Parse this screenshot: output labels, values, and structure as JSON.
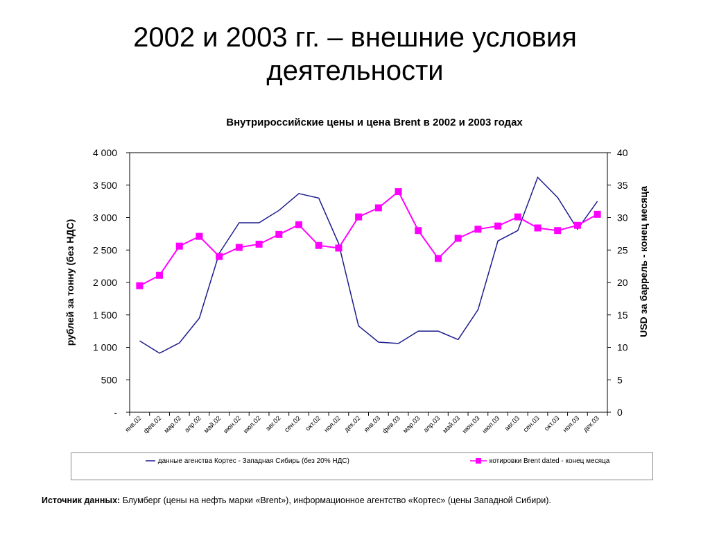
{
  "slide": {
    "title_line1": "2002 и 2003 гг. – внешние условия",
    "title_line2": "деятельности"
  },
  "source": {
    "label": "Источник данных:",
    "text": " Блумберг  (цены на нефть марки «Brent»), информационное агентство «Кортес» (цены Западной Сибири)."
  },
  "chart_data": {
    "type": "line",
    "title": "Внутрироссийские цены и цена Brent в 2002 и 2003 годах",
    "categories": [
      "янв.02",
      "фев.02",
      "мар.02",
      "апр.02",
      "май.02",
      "июн.02",
      "июл.02",
      "авг.02",
      "сен.02",
      "окт.02",
      "ноя.02",
      "дек.02",
      "янв.03",
      "фев.03",
      "мар.03",
      "апр.03",
      "май.03",
      "июн.03",
      "июл.03",
      "авг.03",
      "сен.03",
      "окт.03",
      "ноя.03",
      "дек.03"
    ],
    "ylabel_left": "рублей за тонну (без НДС)",
    "ylabel_right": "USD за баррель - конец месяца",
    "y_left_ticks": [
      "-",
      "500",
      "1 000",
      "1 500",
      "2 000",
      "2 500",
      "3 000",
      "3 500",
      "4 000"
    ],
    "y_right_ticks": [
      "0",
      "5",
      "10",
      "15",
      "20",
      "25",
      "30",
      "35",
      "40"
    ],
    "ylim_left": [
      0,
      4000
    ],
    "ylim_right": [
      0,
      40
    ],
    "grid": false,
    "legend_position": "bottom",
    "series": [
      {
        "name": "данные агенства Кортес - Западная Сибирь (без 20% НДС)",
        "axis": "left",
        "color": "#1c1c8c",
        "marker": "none",
        "values": [
          1100,
          910,
          1070,
          1450,
          2450,
          2920,
          2920,
          3110,
          3370,
          3300,
          2600,
          1330,
          1080,
          1060,
          1250,
          1250,
          1120,
          1580,
          2640,
          2800,
          3620,
          3310,
          2820,
          3250
        ]
      },
      {
        "name": "котировки Brent dated - конец месяца",
        "axis": "right",
        "color": "#ff00ff",
        "marker": "square",
        "values": [
          19.5,
          21.1,
          25.6,
          27.1,
          24.0,
          25.4,
          25.9,
          27.4,
          28.9,
          25.7,
          25.3,
          30.1,
          31.5,
          34.0,
          28.0,
          23.7,
          26.8,
          28.2,
          28.7,
          30.1,
          28.4,
          28.0,
          28.8,
          30.5
        ]
      }
    ]
  }
}
